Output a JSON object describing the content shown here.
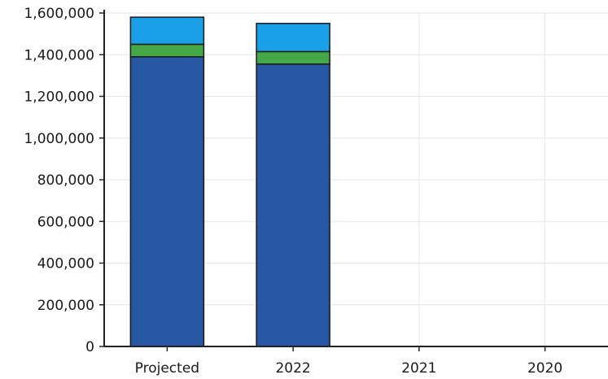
{
  "chart_data": {
    "type": "bar",
    "stacked": true,
    "title": "",
    "xlabel": "",
    "ylabel": "",
    "categories": [
      "Projected",
      "2022",
      "2021",
      "2020"
    ],
    "series": [
      {
        "color": "#2756a3",
        "values": [
          1390000,
          1355000,
          0,
          0
        ]
      },
      {
        "color": "#43a845",
        "values": [
          60000,
          60000,
          0,
          0
        ]
      },
      {
        "color": "#19a0e6",
        "values": [
          130000,
          135000,
          0,
          0
        ]
      }
    ],
    "ylim": [
      0,
      1600000
    ],
    "yticks": [
      "0",
      "200,000",
      "400,000",
      "600,000",
      "800,000",
      "1,000,000",
      "1,200,000",
      "1,400,000",
      "1,600,000"
    ],
    "grid": true,
    "legend": "none"
  }
}
